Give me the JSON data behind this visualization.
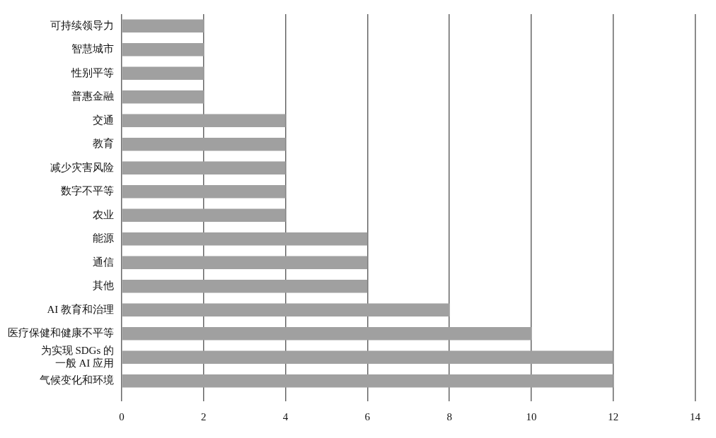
{
  "chart_data": {
    "type": "bar",
    "orientation": "horizontal",
    "categories": [
      "可持续领导力",
      "智慧城市",
      "性别平等",
      "普惠金融",
      "交通",
      "教育",
      "减少灾害风险",
      "数字不平等",
      "农业",
      "能源",
      "通信",
      "其他",
      "AI 教育和治理",
      "医疗保健和健康不平等",
      "为实现 SDGs 的一般 AI 应用",
      "气候变化和环境"
    ],
    "values": [
      2,
      2,
      2,
      2,
      4,
      4,
      4,
      4,
      4,
      6,
      6,
      6,
      8,
      10,
      12,
      12
    ],
    "color": "#a0a0a0",
    "xlim": [
      0,
      14
    ],
    "xticks": [
      0,
      2,
      4,
      6,
      8,
      10,
      12,
      14
    ],
    "grid": "x",
    "legend": false
  }
}
